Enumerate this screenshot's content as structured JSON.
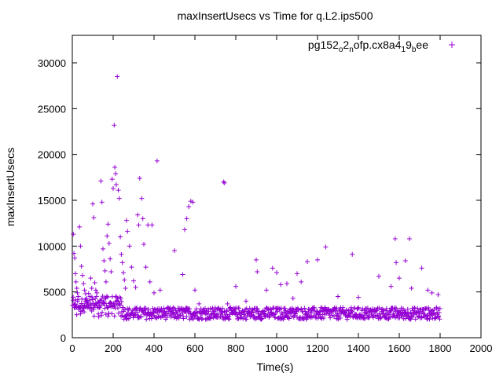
{
  "chart_data": {
    "type": "scatter",
    "title": "maxInsertUsecs vs Time for q.L2.ips500",
    "xlabel": "Time(s)",
    "ylabel": "maxInsertUsecs",
    "xlim": [
      0,
      2000
    ],
    "ylim": [
      0,
      33000
    ],
    "xticks": [
      0,
      200,
      400,
      600,
      800,
      1000,
      1200,
      1400,
      1600,
      1800,
      2000
    ],
    "yticks": [
      0,
      5000,
      10000,
      15000,
      20000,
      25000,
      30000
    ],
    "grid": false,
    "legend_position": "top-right",
    "marker": "plus",
    "series": [
      {
        "name": "pg152_o2_nofp.cx8a4_19_bee",
        "legend_parts": [
          {
            "text": "pg152",
            "baseline": "normal"
          },
          {
            "text": "o",
            "baseline": "sub"
          },
          {
            "text": "2",
            "baseline": "normal"
          },
          {
            "text": "n",
            "baseline": "sub"
          },
          {
            "text": "ofp.cx8a4",
            "baseline": "normal"
          },
          {
            "text": "1",
            "baseline": "sub"
          },
          {
            "text": "9",
            "baseline": "normal"
          },
          {
            "text": "b",
            "baseline": "sub"
          },
          {
            "text": "ee",
            "baseline": "normal"
          }
        ],
        "color": "#9400d3",
        "points": [
          [
            5,
            11300
          ],
          [
            8,
            9200
          ],
          [
            12,
            8700
          ],
          [
            15,
            7000
          ],
          [
            18,
            6100
          ],
          [
            22,
            5400
          ],
          [
            25,
            4900
          ],
          [
            30,
            4500
          ],
          [
            35,
            12100
          ],
          [
            40,
            10000
          ],
          [
            45,
            7800
          ],
          [
            50,
            6800
          ],
          [
            55,
            5900
          ],
          [
            60,
            5200
          ],
          [
            65,
            4800
          ],
          [
            70,
            4300
          ],
          [
            75,
            3900
          ],
          [
            80,
            3500
          ],
          [
            90,
            6500
          ],
          [
            95,
            5400
          ],
          [
            100,
            14600
          ],
          [
            105,
            13100
          ],
          [
            110,
            6000
          ],
          [
            115,
            5200
          ],
          [
            120,
            4900
          ],
          [
            130,
            3800
          ],
          [
            140,
            17100
          ],
          [
            145,
            14800
          ],
          [
            150,
            9700
          ],
          [
            155,
            8400
          ],
          [
            160,
            7300
          ],
          [
            165,
            6100
          ],
          [
            170,
            11100
          ],
          [
            175,
            12400
          ],
          [
            180,
            10300
          ],
          [
            185,
            8600
          ],
          [
            190,
            7200
          ],
          [
            195,
            17300
          ],
          [
            200,
            16300
          ],
          [
            205,
            23200
          ],
          [
            208,
            18600
          ],
          [
            212,
            17900
          ],
          [
            215,
            16700
          ],
          [
            220,
            28500
          ],
          [
            225,
            16100
          ],
          [
            230,
            15200
          ],
          [
            235,
            11000
          ],
          [
            240,
            9100
          ],
          [
            245,
            8200
          ],
          [
            250,
            7100
          ],
          [
            255,
            6300
          ],
          [
            260,
            5400
          ],
          [
            265,
            12800
          ],
          [
            270,
            11600
          ],
          [
            280,
            10000
          ],
          [
            290,
            7700
          ],
          [
            300,
            6200
          ],
          [
            310,
            5500
          ],
          [
            320,
            13400
          ],
          [
            325,
            12300
          ],
          [
            330,
            17400
          ],
          [
            340,
            15200
          ],
          [
            345,
            13000
          ],
          [
            350,
            10200
          ],
          [
            360,
            7700
          ],
          [
            370,
            12300
          ],
          [
            380,
            6100
          ],
          [
            390,
            12300
          ],
          [
            400,
            4900
          ],
          [
            415,
            19300
          ],
          [
            430,
            5200
          ],
          [
            500,
            9500
          ],
          [
            540,
            6900
          ],
          [
            550,
            11800
          ],
          [
            560,
            13000
          ],
          [
            570,
            14300
          ],
          [
            580,
            14900
          ],
          [
            590,
            14800
          ],
          [
            600,
            5200
          ],
          [
            620,
            3700
          ],
          [
            650,
            3200
          ],
          [
            700,
            3000
          ],
          [
            740,
            17000
          ],
          [
            745,
            16900
          ],
          [
            760,
            3700
          ],
          [
            800,
            5600
          ],
          [
            850,
            4000
          ],
          [
            900,
            8500
          ],
          [
            905,
            7200
          ],
          [
            950,
            5200
          ],
          [
            980,
            7600
          ],
          [
            1000,
            7100
          ],
          [
            1020,
            5800
          ],
          [
            1050,
            5900
          ],
          [
            1080,
            4300
          ],
          [
            1100,
            7000
          ],
          [
            1120,
            6100
          ],
          [
            1150,
            8300
          ],
          [
            1200,
            8500
          ],
          [
            1240,
            9900
          ],
          [
            1300,
            4500
          ],
          [
            1370,
            9100
          ],
          [
            1400,
            4400
          ],
          [
            1500,
            6700
          ],
          [
            1560,
            5600
          ],
          [
            1580,
            10800
          ],
          [
            1585,
            8200
          ],
          [
            1600,
            6500
          ],
          [
            1630,
            8400
          ],
          [
            1650,
            10800
          ],
          [
            1660,
            5400
          ],
          [
            1710,
            7600
          ],
          [
            1740,
            5200
          ],
          [
            1760,
            4900
          ],
          [
            1790,
            4700
          ]
        ],
        "dense_band": {
          "x": [
            0,
            1800
          ],
          "y": [
            2000,
            3300
          ],
          "note_points_count": 900
        }
      }
    ]
  }
}
